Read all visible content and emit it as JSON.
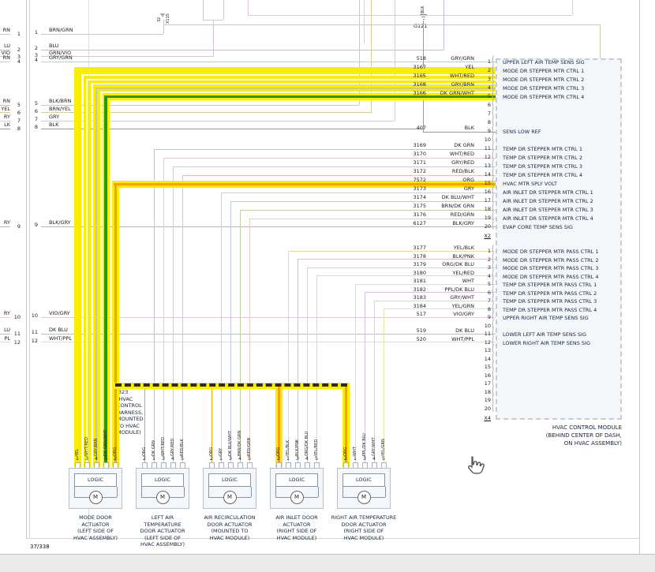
{
  "colors": {
    "highlight_yellow": "#f9ee00",
    "trace_green": "#1f9a1f",
    "trace_orange": "#f7a300"
  },
  "page": {
    "number": "37/338"
  },
  "top": {
    "connector_labels": [
      "32",
      "X115"
    ],
    "ground": {
      "wire": "BLK",
      "label": "G121"
    }
  },
  "left_connector": {
    "margin_labels": [
      "RN",
      "LU",
      "VIO",
      "RN",
      "RN",
      "YEL",
      "RY",
      "LK",
      "RY",
      "RY",
      "LU",
      "PL"
    ],
    "rows": [
      {
        "pin": "1",
        "color": "BRN/GRN"
      },
      {
        "pin": "2",
        "color": "BLU"
      },
      {
        "pin": "3",
        "color": "GRN/VIO"
      },
      {
        "pin": "4",
        "color": "GRY/GRN"
      },
      {
        "pin": "5",
        "color": "BLK/BRN"
      },
      {
        "pin": "6",
        "color": "BRN/YEL"
      },
      {
        "pin": "7",
        "color": "GRY"
      },
      {
        "pin": "8",
        "color": "BLK"
      },
      {
        "pin": "9",
        "color": "BLK/GRY"
      },
      {
        "pin": "10",
        "color": "VIO/GRY"
      },
      {
        "pin": "11",
        "color": "DK BLU"
      },
      {
        "pin": "12",
        "color": "WHT/PPL"
      }
    ]
  },
  "splice": {
    "lines": [
      "J323",
      "(HVAC",
      "CONTROL",
      "HARNESS,",
      "MOUNTED",
      "TO HVAC",
      "MODULE)"
    ]
  },
  "hvac_module": {
    "name_lines": [
      "HVAC CONTROL MODULE",
      "(BEHIND CENTER OF DASH,",
      "ON HVAC ASSEMBLY)"
    ],
    "connector_x2": {
      "label": "X2",
      "rows": [
        {
          "pin": "1",
          "circuit": "518",
          "color": "GRY/GRN",
          "signal": "UPPER LEFT AIR TEMP SENS SIG"
        },
        {
          "pin": "2",
          "circuit": "3167",
          "color": "YEL",
          "signal": "MODE DR STEPPER MTR CTRL 1"
        },
        {
          "pin": "3",
          "circuit": "3165",
          "color": "WHT/RED",
          "signal": "MODE DR STEPPER MTR CTRL 2"
        },
        {
          "pin": "4",
          "circuit": "3168",
          "color": "GRY/BRN",
          "signal": "MODE DR STEPPER MTR CTRL 3"
        },
        {
          "pin": "5",
          "circuit": "3166",
          "color": "DK GRN/WHT",
          "signal": "MODE DR STEPPER MTR CTRL 4"
        },
        {
          "pin": "6"
        },
        {
          "pin": "7"
        },
        {
          "pin": "8"
        },
        {
          "pin": "9",
          "circuit": "407",
          "color": "BLK",
          "signal": "SENS LOW REF"
        },
        {
          "pin": "10"
        },
        {
          "pin": "11",
          "circuit": "3169",
          "color": "DK GRN",
          "signal": "TEMP DR STEPPER MTR CTRL 1"
        },
        {
          "pin": "12",
          "circuit": "3170",
          "color": "WHT/RED",
          "signal": "TEMP DR STEPPER MTR CTRL 2"
        },
        {
          "pin": "13",
          "circuit": "3171",
          "color": "GRY/RED",
          "signal": "TEMP DR STEPPER MTR CTRL 3"
        },
        {
          "pin": "14",
          "circuit": "3172",
          "color": "RED/BLK",
          "signal": "TEMP DR STEPPER MTR CTRL 4"
        },
        {
          "pin": "15",
          "circuit": "7572",
          "color": "ORG",
          "signal": "HVAC MTR SPLY VOLT"
        },
        {
          "pin": "16",
          "circuit": "3173",
          "color": "GRY",
          "signal": "AIR INLET DR STEPPER MTR CTRL 1"
        },
        {
          "pin": "17",
          "circuit": "3174",
          "color": "DK BLU/WHT",
          "signal": "AIR INLET DR STEPPER MTR CTRL 2"
        },
        {
          "pin": "18",
          "circuit": "3175",
          "color": "BRN/DK GRN",
          "signal": "AIR INLET DR STEPPER MTR CTRL 3"
        },
        {
          "pin": "19",
          "circuit": "3176",
          "color": "RED/GRN",
          "signal": "AIR INLET DR STEPPER MTR CTRL 4"
        },
        {
          "pin": "20",
          "circuit": "6127",
          "color": "BLK/GRY",
          "signal": "EVAP CORE TEMP SENS SIG"
        }
      ]
    },
    "connector_x4": {
      "label": "X4",
      "rows": [
        {
          "pin": "1",
          "circuit": "3177",
          "color": "YEL/BLK",
          "signal": "MODE DR STEPPER MTR PASS CTRL 1"
        },
        {
          "pin": "2",
          "circuit": "3178",
          "color": "BLK/PNK",
          "signal": "MODE DR STEPPER MTR PASS CTRL 2"
        },
        {
          "pin": "3",
          "circuit": "3179",
          "color": "ORG/DK BLU",
          "signal": "MODE DR STEPPER MTR PASS CTRL 3"
        },
        {
          "pin": "4",
          "circuit": "3180",
          "color": "YEL/RED",
          "signal": "MODE DR STEPPER MTR PASS CTRL 4"
        },
        {
          "pin": "5",
          "circuit": "3181",
          "color": "WHT",
          "signal": "TEMP DR STEPPER MTR PASS CTRL 1"
        },
        {
          "pin": "6",
          "circuit": "3182",
          "color": "PPL/DK BLU",
          "signal": "TEMP DR STEPPER MTR PASS CTRL 2"
        },
        {
          "pin": "7",
          "circuit": "3183",
          "color": "GRY/WHT",
          "signal": "TEMP DR STEPPER MTR PASS CTRL 3"
        },
        {
          "pin": "8",
          "circuit": "3184",
          "color": "YEL/GRN",
          "signal": "TEMP DR STEPPER MTR PASS CTRL 4"
        },
        {
          "pin": "9",
          "circuit": "517",
          "color": "VIO/GRY",
          "signal": "UPPER RIGHT AIR TEMP SENS SIG"
        },
        {
          "pin": "10"
        },
        {
          "pin": "11",
          "circuit": "519",
          "color": "DK BLU",
          "signal": "LOWER LEFT AIR TEMP SENS SIG"
        },
        {
          "pin": "12",
          "circuit": "520",
          "color": "WHT/PPL",
          "signal": "LOWER RIGHT AIR TEMP SENS SIG"
        },
        {
          "pin": "13"
        },
        {
          "pin": "14"
        },
        {
          "pin": "15"
        },
        {
          "pin": "16"
        },
        {
          "pin": "17"
        },
        {
          "pin": "18"
        },
        {
          "pin": "19"
        },
        {
          "pin": "20"
        }
      ]
    }
  },
  "actuators": [
    {
      "logic": "LOGIC",
      "motor": "M",
      "label_lines": [
        "MODE DOOR",
        "ACTUATOR",
        "(LEFT SIDE OF",
        "HVAC ASSEMBLY)"
      ],
      "wires": [
        {
          "pin": "1",
          "color": "YEL"
        },
        {
          "pin": "3",
          "color": "WHT/RED"
        },
        {
          "pin": "4",
          "color": "GRY/BRN"
        },
        {
          "pin": "5",
          "color": "DK GRN/WHT"
        },
        {
          "pin": "2",
          "color": "ORG"
        }
      ]
    },
    {
      "logic": "LOGIC",
      "motor": "M",
      "label_lines": [
        "LEFT AIR",
        "TEMPERATURE",
        "DOOR ACTUATOR",
        "(LEFT SIDE OF",
        "HVAC ASSEMBLY)"
      ],
      "wires": [
        {
          "pin": "2",
          "color": "ORG"
        },
        {
          "pin": "1",
          "color": "DK GRN"
        },
        {
          "pin": "3",
          "color": "WHT/RED"
        },
        {
          "pin": "4",
          "color": "GRY/RED"
        },
        {
          "pin": "5",
          "color": "RED/BLK"
        }
      ]
    },
    {
      "logic": "LOGIC",
      "motor": "M",
      "label_lines": [
        "AIR RECIRCULATION",
        "DOOR ACTUATOR",
        "(MOUNTED TO",
        "HVAC MODULE)"
      ],
      "wires": [
        {
          "pin": "2",
          "color": "ORG"
        },
        {
          "pin": "1",
          "color": "GRY"
        },
        {
          "pin": "3",
          "color": "DK BLU/WHT"
        },
        {
          "pin": "4",
          "color": "BRN/DK GRN"
        },
        {
          "pin": "5",
          "color": "RED/GRN"
        }
      ]
    },
    {
      "logic": "LOGIC",
      "motor": "M",
      "label_lines": [
        "AIR INLET DOOR",
        "ACTUATOR",
        "(RIGHT SIDE OF",
        "HVAC MODULE)"
      ],
      "wires": [
        {
          "pin": "2",
          "color": "ORG"
        },
        {
          "pin": "1",
          "color": "YEL/BLK"
        },
        {
          "pin": "3",
          "color": "BLK/PNK"
        },
        {
          "pin": "4",
          "color": "ORG/DK BLU"
        },
        {
          "pin": "5",
          "color": "YEL/RED"
        }
      ]
    },
    {
      "logic": "LOGIC",
      "motor": "M",
      "label_lines": [
        "RIGHT AIR TEMPERATURE",
        "DOOR ACTUATOR",
        "(RIGHT SIDE OF",
        "HVAC MODULE)"
      ],
      "wires": [
        {
          "pin": "2",
          "color": "ORG"
        },
        {
          "pin": "1",
          "color": "WHT"
        },
        {
          "pin": "3",
          "color": "PPL/DK BLU"
        },
        {
          "pin": "4",
          "color": "GRY/WHT"
        },
        {
          "pin": "5",
          "color": "YEL/GRN"
        }
      ]
    }
  ]
}
